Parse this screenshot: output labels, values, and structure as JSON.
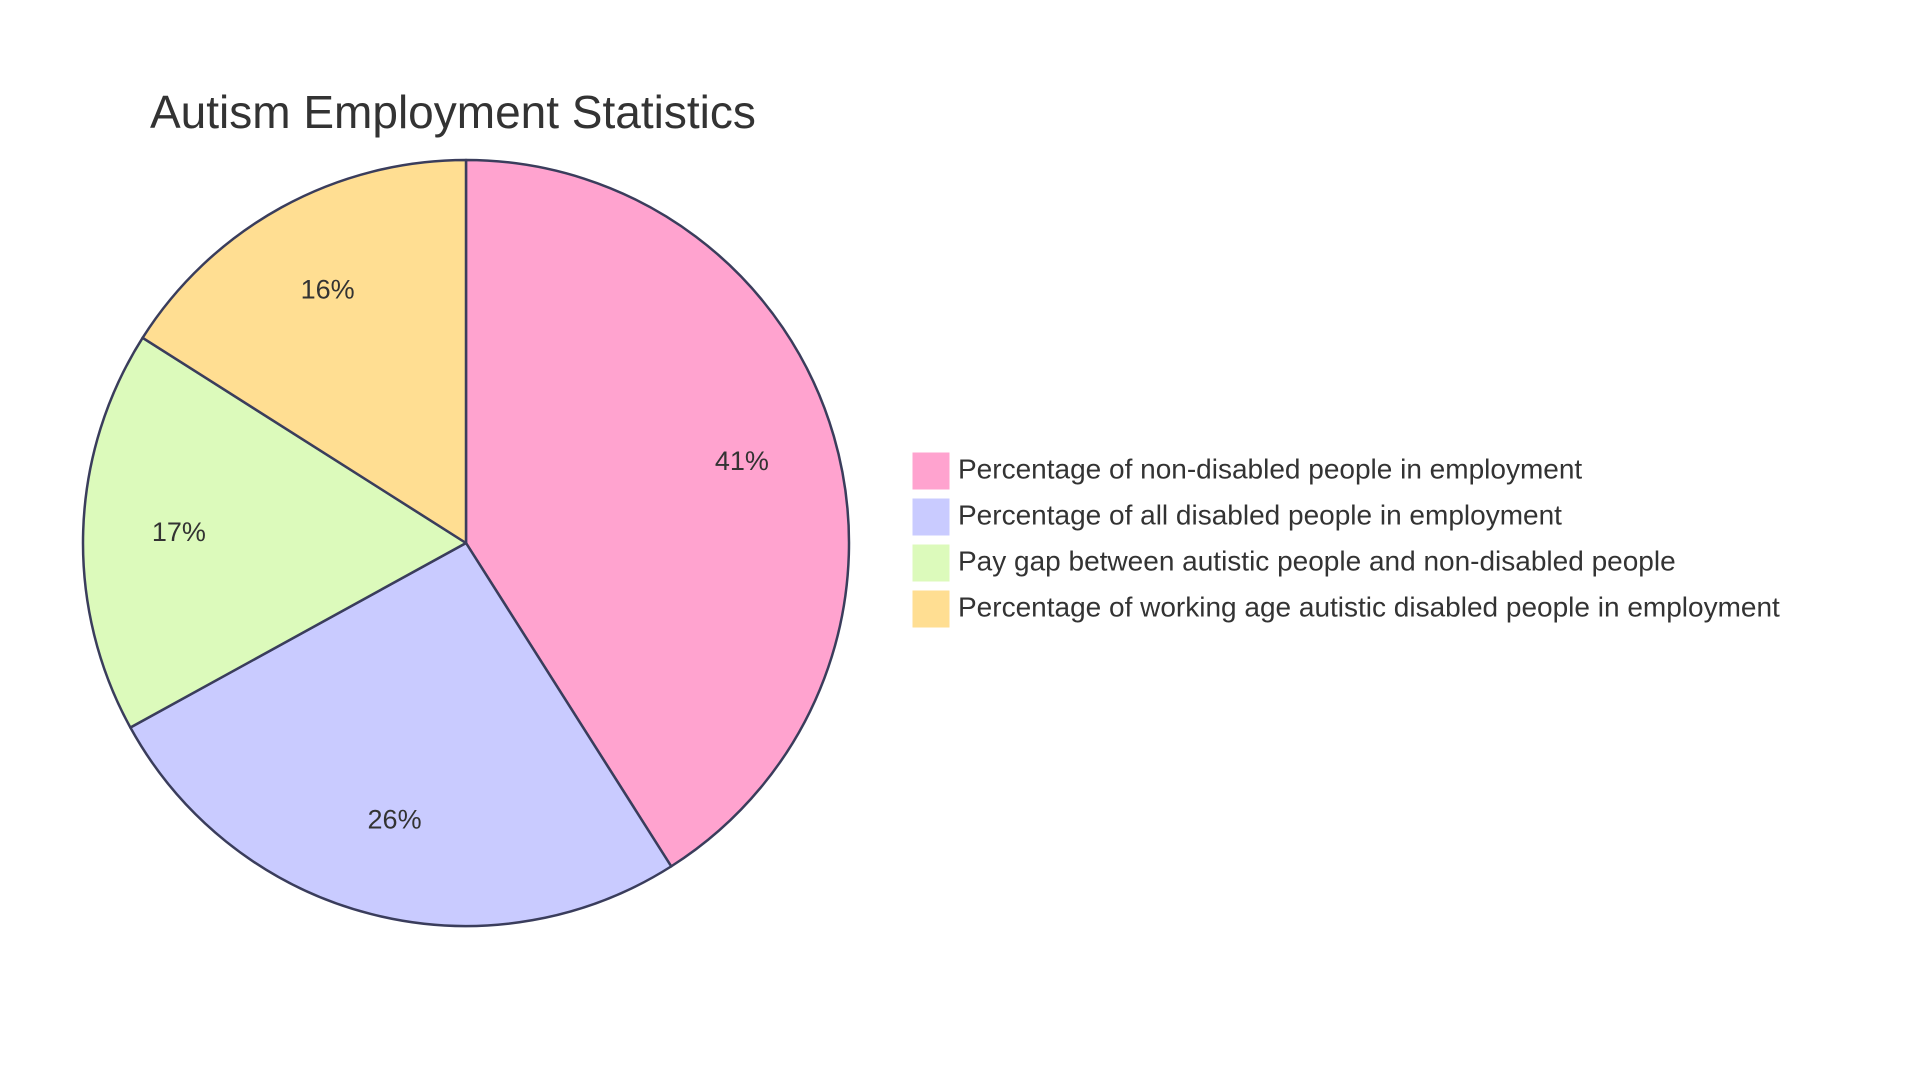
{
  "chart_data": {
    "type": "pie",
    "title": "Autism Employment Statistics",
    "slices": [
      {
        "label": "Percentage of non-disabled people in employment",
        "value": 41,
        "display": "41%",
        "color": "#FFA3CF"
      },
      {
        "label": "Percentage of all disabled people in employment",
        "value": 26,
        "display": "26%",
        "color": "#C9CBFF"
      },
      {
        "label": "Pay gap between autistic people and non-disabled people",
        "value": 17,
        "display": "17%",
        "color": "#DCFABB"
      },
      {
        "label": "Percentage of working age autistic disabled people in employment",
        "value": 16,
        "display": "16%",
        "color": "#FFDE92"
      }
    ],
    "legend_position": "right",
    "stroke_color": "#3A3D5C"
  }
}
